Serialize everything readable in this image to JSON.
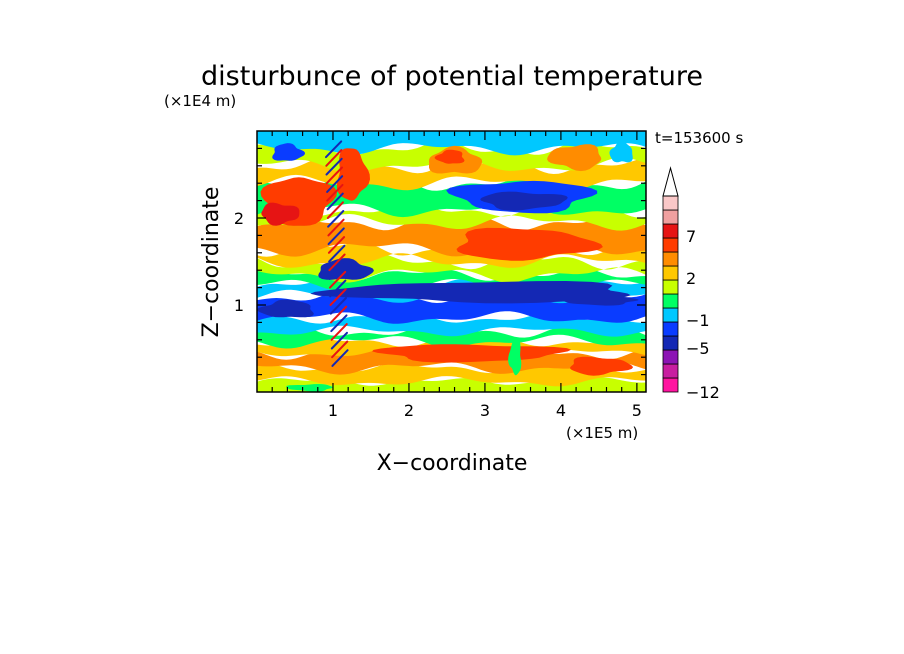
{
  "chart_data": {
    "type": "heatmap",
    "title": "disturbunce of potential temperature",
    "xlabel": "X−coordinate",
    "ylabel": "Z−coordinate",
    "x_unit": "(×1E5 m)",
    "y_unit": "(×1E4 m)",
    "time_label": "t=153600 s",
    "xlim": [
      0,
      5.12
    ],
    "ylim": [
      0,
      3.0
    ],
    "x_ticks": [
      1,
      2,
      3,
      4,
      5
    ],
    "y_ticks": [
      1,
      2
    ],
    "x_tick_labels": [
      "1",
      "2",
      "3",
      "4",
      "5"
    ],
    "y_tick_labels": [
      "1",
      "2"
    ],
    "colorbar": {
      "labels": [
        {
          "value": 7,
          "text": "7"
        },
        {
          "value": 2,
          "text": "2"
        },
        {
          "value": -1,
          "text": "−1"
        },
        {
          "value": -5,
          "text": "−5"
        },
        {
          "value": -12,
          "text": "−12"
        }
      ],
      "levels": [
        {
          "color": "#ff14a0"
        },
        {
          "color": "#c81ea0"
        },
        {
          "color": "#8c14b4"
        },
        {
          "color": "#1428b4"
        },
        {
          "color": "#0a3cff"
        },
        {
          "color": "#00c8ff"
        },
        {
          "color": "#00ff64"
        },
        {
          "color": "#c8ff00"
        },
        {
          "color": "#ffc800"
        },
        {
          "color": "#ff8c00"
        },
        {
          "color": "#ff3c00"
        },
        {
          "color": "#e61414"
        },
        {
          "color": "#f0a0a0"
        },
        {
          "color": "#fac8c8"
        }
      ],
      "extend_max_color": "#ffffff"
    },
    "bands": [
      {
        "z0": 0.0,
        "z1": 0.12,
        "level": 7,
        "amp": 0.03
      },
      {
        "z0": 0.12,
        "z1": 0.28,
        "level": 8,
        "amp": 0.04
      },
      {
        "z0": 0.28,
        "z1": 0.45,
        "level": 9,
        "amp": 0.05
      },
      {
        "z0": 0.45,
        "z1": 0.58,
        "level": 8,
        "amp": 0.04
      },
      {
        "z0": 0.58,
        "z1": 0.7,
        "level": 6,
        "amp": 0.05
      },
      {
        "z0": 0.7,
        "z1": 0.85,
        "level": 5,
        "amp": 0.04
      },
      {
        "z0": 0.85,
        "z1": 1.1,
        "level": 4,
        "amp": 0.05
      },
      {
        "z0": 1.1,
        "z1": 1.22,
        "level": 5,
        "amp": 0.05
      },
      {
        "z0": 1.22,
        "z1": 1.35,
        "level": 6,
        "amp": 0.05
      },
      {
        "z0": 1.35,
        "z1": 1.5,
        "level": 7,
        "amp": 0.06
      },
      {
        "z0": 1.5,
        "z1": 1.65,
        "level": 8,
        "amp": 0.06
      },
      {
        "z0": 1.65,
        "z1": 1.95,
        "level": 9,
        "amp": 0.06
      },
      {
        "z0": 1.95,
        "z1": 2.1,
        "level": 7,
        "amp": 0.06
      },
      {
        "z0": 2.1,
        "z1": 2.4,
        "level": 6,
        "amp": 0.06
      },
      {
        "z0": 2.4,
        "z1": 2.6,
        "level": 8,
        "amp": 0.06
      },
      {
        "z0": 2.6,
        "z1": 2.8,
        "level": 7,
        "amp": 0.06
      },
      {
        "z0": 2.8,
        "z1": 3.0,
        "level": 5,
        "amp": 0.05
      }
    ],
    "blobs": [
      {
        "cx": 0.55,
        "cz": 2.2,
        "rx": 0.45,
        "rz": 0.28,
        "level": 10
      },
      {
        "cx": 0.3,
        "cz": 2.05,
        "rx": 0.25,
        "rz": 0.12,
        "level": 11
      },
      {
        "cx": 1.25,
        "cz": 2.5,
        "rx": 0.2,
        "rz": 0.3,
        "level": 10
      },
      {
        "cx": 2.6,
        "cz": 2.65,
        "rx": 0.35,
        "rz": 0.15,
        "level": 9
      },
      {
        "cx": 2.55,
        "cz": 2.7,
        "rx": 0.18,
        "rz": 0.08,
        "level": 10
      },
      {
        "cx": 4.2,
        "cz": 2.7,
        "rx": 0.35,
        "rz": 0.14,
        "level": 9
      },
      {
        "cx": 3.5,
        "cz": 2.25,
        "rx": 0.9,
        "rz": 0.18,
        "level": 4
      },
      {
        "cx": 3.5,
        "cz": 2.2,
        "rx": 0.55,
        "rz": 0.1,
        "level": 3
      },
      {
        "cx": 3.5,
        "cz": 1.7,
        "rx": 0.9,
        "rz": 0.18,
        "level": 10
      },
      {
        "cx": 1.15,
        "cz": 1.4,
        "rx": 0.35,
        "rz": 0.12,
        "level": 3
      },
      {
        "cx": 0.4,
        "cz": 0.95,
        "rx": 0.35,
        "rz": 0.1,
        "level": 3
      },
      {
        "cx": 3.0,
        "cz": 1.15,
        "rx": 2.0,
        "rz": 0.12,
        "level": 3
      },
      {
        "cx": 4.5,
        "cz": 1.05,
        "rx": 0.5,
        "rz": 0.05,
        "level": 3
      },
      {
        "cx": 2.8,
        "cz": 0.45,
        "rx": 1.2,
        "rz": 0.1,
        "level": 10
      },
      {
        "cx": 4.5,
        "cz": 0.3,
        "rx": 0.4,
        "rz": 0.1,
        "level": 10
      },
      {
        "cx": 0.4,
        "cz": 2.75,
        "rx": 0.2,
        "rz": 0.1,
        "level": 4
      },
      {
        "cx": 4.8,
        "cz": 2.75,
        "rx": 0.15,
        "rz": 0.12,
        "level": 5
      },
      {
        "cx": 3.4,
        "cz": 0.4,
        "rx": 0.08,
        "rz": 0.2,
        "level": 6
      },
      {
        "cx": 0.7,
        "cz": 0.05,
        "rx": 0.3,
        "rz": 0.04,
        "level": 6
      }
    ],
    "wave_packet": {
      "x_center": 1.05,
      "x_width": 0.25,
      "z0": 0.3,
      "z1": 2.8,
      "tilt": -0.35,
      "period": 0.1,
      "levels": [
        3,
        11
      ]
    }
  }
}
